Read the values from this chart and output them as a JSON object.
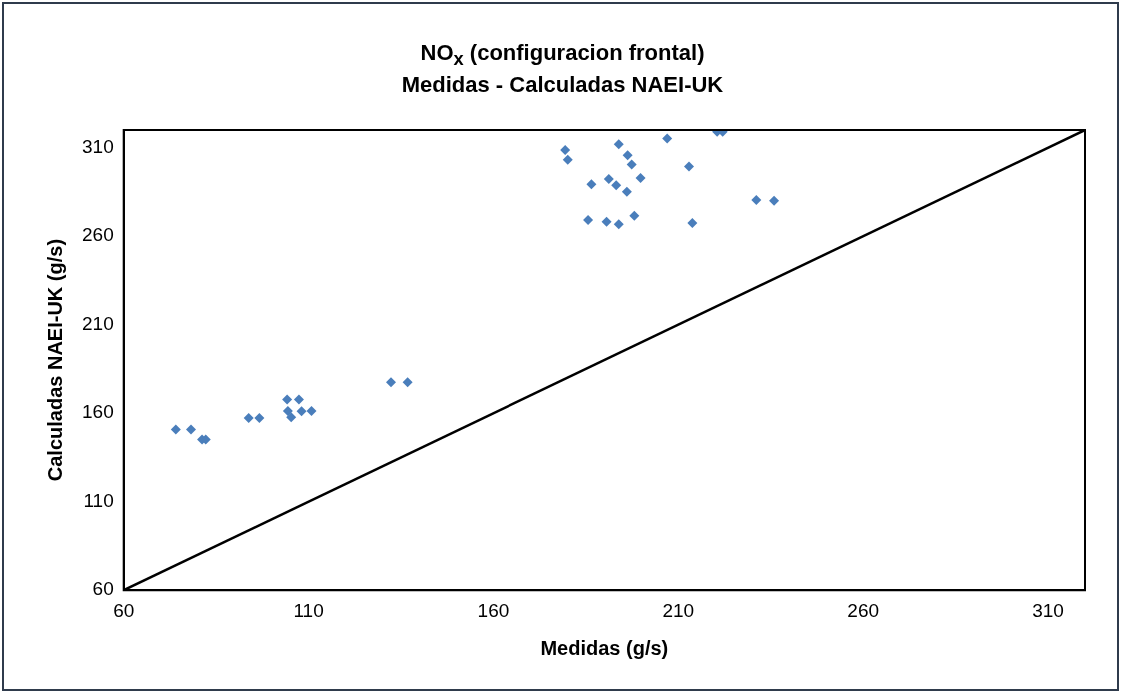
{
  "chart_data": {
    "type": "scatter",
    "title": "NO$_{x}$ (configuracion frontal)",
    "subtitle": "Medidas - Calculadas NAEI-UK",
    "xlabel": "Medidas (g/s)",
    "ylabel": "Calculadas NAEI-UK (g/s)",
    "xlim": [
      60,
      320
    ],
    "ylim": [
      60,
      320
    ],
    "xticks": [
      60,
      110,
      160,
      210,
      260,
      310
    ],
    "yticks": [
      60,
      110,
      160,
      210,
      260,
      310
    ],
    "grid": false,
    "legend": false,
    "marker": "diamond",
    "series": [
      {
        "color": "#4a7ebb",
        "x": [
          179.4,
          180.1,
          193.9,
          196.3,
          197.4,
          207,
          220.5,
          222,
          212.9,
          186.5,
          191.2,
          193.2,
          199.8,
          196.1,
          231.1,
          235.9,
          185.6,
          190.6,
          193.9,
          198.1,
          213.8,
          74.1,
          78.2,
          81.2,
          82.2,
          93.8,
          96.7,
          104.2,
          107.4,
          104.4,
          105.3,
          108.1,
          110.8,
          132.3,
          136.8
        ],
        "values": [
          308.7,
          303.2,
          312,
          305.7,
          300.5,
          315.2,
          319,
          319,
          299.4,
          289.3,
          292.3,
          288.8,
          292.9,
          285.1,
          280.4,
          280,
          269.2,
          268.1,
          266.7,
          271.5,
          267.5,
          150.8,
          150.8,
          145.1,
          145.1,
          157.3,
          157.3,
          167.8,
          167.8,
          161.3,
          157.7,
          161.1,
          161.3,
          177.5,
          177.5
        ]
      },
      {
        "type": "line",
        "color": "#000000",
        "marker": "none",
        "line_style": "solid",
        "x": [
          60,
          320
        ],
        "values": [
          60,
          320
        ]
      }
    ]
  }
}
